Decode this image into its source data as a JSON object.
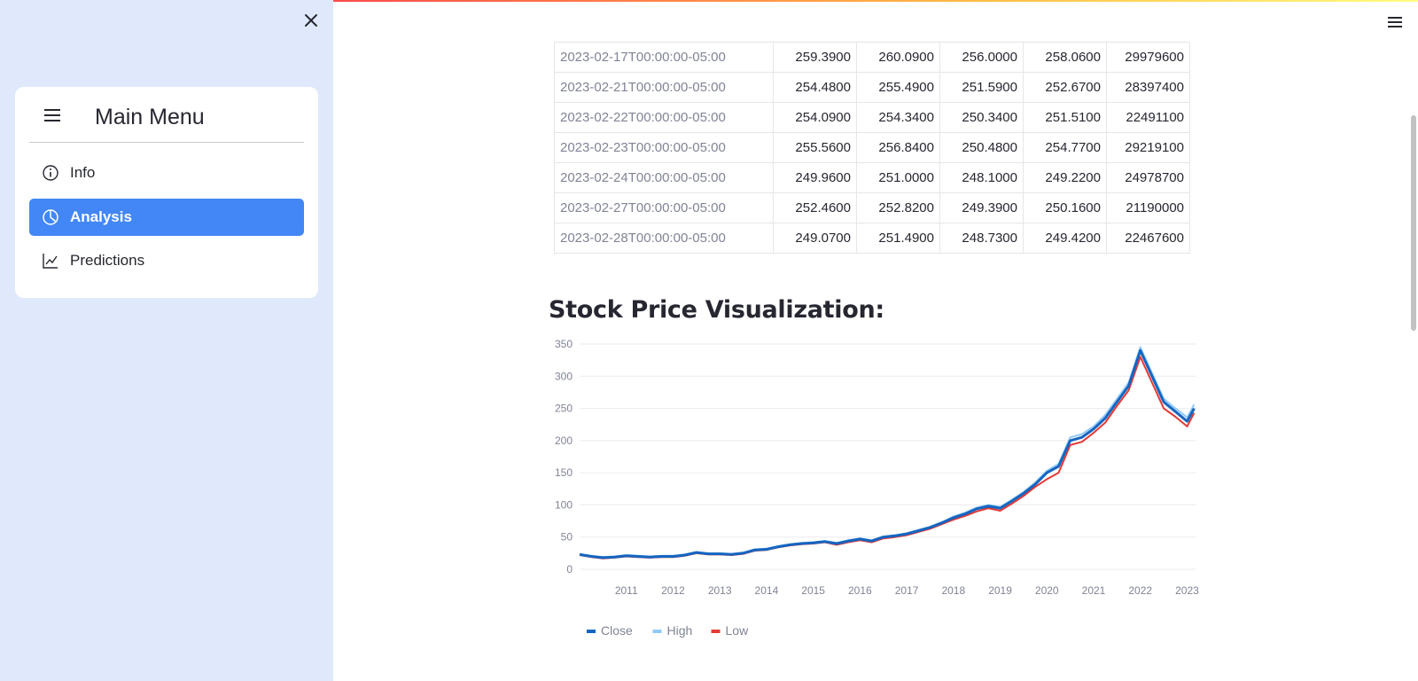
{
  "sidebar": {
    "menu_title": "Main Menu",
    "items": [
      {
        "label": "Info",
        "icon": "info-circle-icon",
        "active": false
      },
      {
        "label": "Analysis",
        "icon": "pie-chart-icon",
        "active": true
      },
      {
        "label": "Predictions",
        "icon": "graph-up-icon",
        "active": false
      }
    ],
    "accent_color": "#4287f5"
  },
  "table": {
    "rows": [
      {
        "date": "2023-02-17T00:00:00-05:00",
        "c1": "259.3900",
        "c2": "260.0900",
        "c3": "256.0000",
        "c4": "258.0600",
        "c5": "29979600"
      },
      {
        "date": "2023-02-21T00:00:00-05:00",
        "c1": "254.4800",
        "c2": "255.4900",
        "c3": "251.5900",
        "c4": "252.6700",
        "c5": "28397400"
      },
      {
        "date": "2023-02-22T00:00:00-05:00",
        "c1": "254.0900",
        "c2": "254.3400",
        "c3": "250.3400",
        "c4": "251.5100",
        "c5": "22491100"
      },
      {
        "date": "2023-02-23T00:00:00-05:00",
        "c1": "255.5600",
        "c2": "256.8400",
        "c3": "250.4800",
        "c4": "254.7700",
        "c5": "29219100"
      },
      {
        "date": "2023-02-24T00:00:00-05:00",
        "c1": "249.9600",
        "c2": "251.0000",
        "c3": "248.1000",
        "c4": "249.2200",
        "c5": "24978700"
      },
      {
        "date": "2023-02-27T00:00:00-05:00",
        "c1": "252.4600",
        "c2": "252.8200",
        "c3": "249.3900",
        "c4": "250.1600",
        "c5": "21190000"
      },
      {
        "date": "2023-02-28T00:00:00-05:00",
        "c1": "249.0700",
        "c2": "251.4900",
        "c3": "248.7300",
        "c4": "249.4200",
        "c5": "22467600"
      }
    ]
  },
  "section_title": "Stock Price Visualization:",
  "chart_data": {
    "type": "line",
    "title": "",
    "xlabel": "",
    "ylabel": "",
    "y_ticks": [
      0,
      50,
      100,
      150,
      200,
      250,
      300,
      350
    ],
    "ylim": [
      0,
      350
    ],
    "x_ticks": [
      "2011",
      "2012",
      "2013",
      "2014",
      "2015",
      "2016",
      "2017",
      "2018",
      "2019",
      "2020",
      "2021",
      "2022",
      "2023"
    ],
    "xlim": [
      2010.0,
      2023.2
    ],
    "grid": true,
    "legend_position": "bottom-left",
    "x": [
      2010.0,
      2010.25,
      2010.5,
      2010.75,
      2011.0,
      2011.25,
      2011.5,
      2011.75,
      2012.0,
      2012.25,
      2012.5,
      2012.75,
      2013.0,
      2013.25,
      2013.5,
      2013.75,
      2014.0,
      2014.25,
      2014.5,
      2014.75,
      2015.0,
      2015.25,
      2015.5,
      2015.75,
      2016.0,
      2016.25,
      2016.5,
      2016.75,
      2017.0,
      2017.25,
      2017.5,
      2017.75,
      2018.0,
      2018.25,
      2018.5,
      2018.75,
      2019.0,
      2019.25,
      2019.5,
      2019.75,
      2020.0,
      2020.25,
      2020.5,
      2020.75,
      2021.0,
      2021.25,
      2021.5,
      2021.75,
      2022.0,
      2022.25,
      2022.5,
      2022.75,
      2023.0,
      2023.15
    ],
    "series": [
      {
        "name": "Close",
        "color": "#1565c0",
        "values": [
          23,
          20,
          18,
          19,
          21,
          20,
          19,
          20,
          20,
          22,
          26,
          24,
          24,
          23,
          25,
          30,
          31,
          35,
          38,
          40,
          41,
          43,
          40,
          44,
          47,
          44,
          50,
          52,
          55,
          60,
          65,
          72,
          80,
          86,
          94,
          98,
          95,
          106,
          118,
          132,
          150,
          160,
          200,
          205,
          218,
          235,
          260,
          285,
          340,
          300,
          260,
          245,
          230,
          250
        ]
      },
      {
        "name": "High",
        "color": "#90caf9",
        "values": [
          24,
          21,
          19,
          20,
          22,
          21,
          20,
          21,
          21,
          23,
          27,
          25,
          25,
          24,
          26,
          31,
          32,
          36,
          39,
          41,
          42,
          44,
          41,
          45,
          48,
          45,
          51,
          53,
          56,
          61,
          66,
          73,
          82,
          88,
          96,
          100,
          97,
          108,
          120,
          135,
          153,
          164,
          205,
          210,
          222,
          240,
          265,
          290,
          345,
          305,
          265,
          250,
          236,
          256
        ]
      },
      {
        "name": "Low",
        "color": "#e53935",
        "values": [
          22,
          19,
          17,
          18,
          20,
          19,
          18,
          19,
          19,
          21,
          25,
          23,
          23,
          22,
          24,
          29,
          30,
          34,
          37,
          39,
          40,
          42,
          38,
          42,
          45,
          42,
          48,
          50,
          53,
          58,
          63,
          70,
          77,
          83,
          90,
          95,
          91,
          102,
          114,
          128,
          140,
          150,
          193,
          198,
          212,
          228,
          254,
          278,
          330,
          290,
          250,
          237,
          222,
          243
        ]
      }
    ]
  }
}
